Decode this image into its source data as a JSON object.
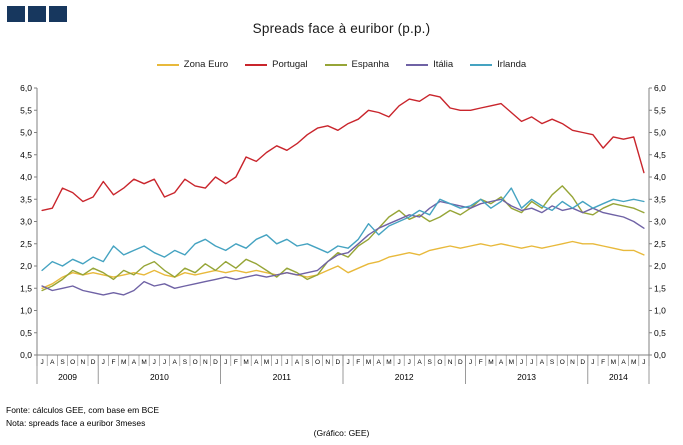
{
  "brand": {
    "square_color": "#17375E",
    "square_count": 3
  },
  "footer": {
    "source": "Fonte: cálculos GEE, com base em BCE",
    "note": "Nota: spreads face a euribor 3meses",
    "credit": "(Gráfico: GEE)"
  },
  "chart_data": {
    "type": "line",
    "title": "Spreads face à euribor (p.p.)",
    "ylim": [
      0,
      6
    ],
    "y_step": 0.5,
    "y_tick_labels": [
      "0,0",
      "0,5",
      "1,0",
      "1,5",
      "2,0",
      "2,5",
      "3,0",
      "3,5",
      "4,0",
      "4,5",
      "5,0",
      "5,5",
      "6,0"
    ],
    "grid": "off",
    "legend_position": "top-center",
    "axis_color": "#808080",
    "months": [
      "J",
      "A",
      "S",
      "O",
      "N",
      "D",
      "J",
      "F",
      "M",
      "A",
      "M",
      "J",
      "J",
      "A",
      "S",
      "O",
      "N",
      "D",
      "J",
      "F",
      "M",
      "A",
      "M",
      "J",
      "J",
      "A",
      "S",
      "O",
      "N",
      "D",
      "J",
      "F",
      "M",
      "A",
      "M",
      "J",
      "J",
      "A",
      "S",
      "O",
      "N",
      "D",
      "J",
      "F",
      "M",
      "A",
      "M",
      "J",
      "J",
      "A",
      "S",
      "O",
      "N",
      "D",
      "J",
      "F",
      "M",
      "A",
      "M",
      "J"
    ],
    "years": [
      {
        "label": "2009",
        "months": 6
      },
      {
        "label": "2010",
        "months": 12
      },
      {
        "label": "2011",
        "months": 12
      },
      {
        "label": "2012",
        "months": 12
      },
      {
        "label": "2013",
        "months": 12
      },
      {
        "label": "2014",
        "months": 6
      }
    ],
    "series": [
      {
        "name": "Zona Euro",
        "color": "#E8B93B",
        "values": [
          1.5,
          1.6,
          1.75,
          1.85,
          1.8,
          1.85,
          1.8,
          1.75,
          1.8,
          1.85,
          1.8,
          1.9,
          1.8,
          1.75,
          1.85,
          1.8,
          1.85,
          1.9,
          1.85,
          1.9,
          1.85,
          1.9,
          1.85,
          1.8,
          1.85,
          1.8,
          1.75,
          1.8,
          1.9,
          2.0,
          1.85,
          1.95,
          2.05,
          2.1,
          2.2,
          2.25,
          2.3,
          2.25,
          2.35,
          2.4,
          2.45,
          2.4,
          2.45,
          2.5,
          2.45,
          2.5,
          2.45,
          2.4,
          2.45,
          2.4,
          2.45,
          2.5,
          2.55,
          2.5,
          2.5,
          2.45,
          2.4,
          2.35,
          2.35,
          2.25
        ]
      },
      {
        "name": "Portugal",
        "color": "#C9252C",
        "values": [
          3.25,
          3.3,
          3.75,
          3.65,
          3.45,
          3.55,
          3.9,
          3.6,
          3.75,
          3.95,
          3.85,
          3.95,
          3.55,
          3.65,
          3.95,
          3.8,
          3.75,
          4.0,
          3.85,
          4.0,
          4.45,
          4.35,
          4.55,
          4.7,
          4.6,
          4.75,
          4.95,
          5.1,
          5.15,
          5.05,
          5.2,
          5.3,
          5.5,
          5.45,
          5.35,
          5.6,
          5.75,
          5.7,
          5.85,
          5.8,
          5.55,
          5.5,
          5.5,
          5.55,
          5.6,
          5.65,
          5.45,
          5.25,
          5.35,
          5.2,
          5.3,
          5.2,
          5.05,
          5.0,
          4.95,
          4.65,
          4.9,
          4.85,
          4.9,
          4.1
        ]
      },
      {
        "name": "Espanha",
        "color": "#96A537",
        "values": [
          1.45,
          1.55,
          1.7,
          1.9,
          1.8,
          1.95,
          1.85,
          1.7,
          1.9,
          1.8,
          2.0,
          2.1,
          1.9,
          1.75,
          1.95,
          1.85,
          2.05,
          1.9,
          2.1,
          1.95,
          2.15,
          2.05,
          1.9,
          1.75,
          1.95,
          1.85,
          1.7,
          1.8,
          2.1,
          2.3,
          2.2,
          2.45,
          2.6,
          2.85,
          3.1,
          3.25,
          3.05,
          3.15,
          3.0,
          3.1,
          3.25,
          3.15,
          3.3,
          3.5,
          3.4,
          3.55,
          3.3,
          3.2,
          3.45,
          3.3,
          3.6,
          3.8,
          3.55,
          3.2,
          3.15,
          3.3,
          3.4,
          3.35,
          3.3,
          3.2
        ]
      },
      {
        "name": "Itália",
        "color": "#6F62A5",
        "values": [
          1.55,
          1.45,
          1.5,
          1.55,
          1.45,
          1.4,
          1.35,
          1.4,
          1.35,
          1.45,
          1.65,
          1.55,
          1.6,
          1.5,
          1.55,
          1.6,
          1.65,
          1.7,
          1.75,
          1.7,
          1.75,
          1.8,
          1.75,
          1.8,
          1.85,
          1.8,
          1.85,
          1.9,
          2.1,
          2.25,
          2.3,
          2.5,
          2.7,
          2.85,
          2.95,
          3.05,
          3.15,
          3.1,
          3.3,
          3.45,
          3.4,
          3.35,
          3.3,
          3.4,
          3.45,
          3.5,
          3.35,
          3.25,
          3.3,
          3.2,
          3.35,
          3.25,
          3.3,
          3.2,
          3.3,
          3.2,
          3.15,
          3.1,
          3.0,
          2.85
        ]
      },
      {
        "name": "Irlanda",
        "color": "#45A3C1",
        "values": [
          1.9,
          2.1,
          2.0,
          2.15,
          2.05,
          2.2,
          2.1,
          2.45,
          2.25,
          2.35,
          2.45,
          2.3,
          2.2,
          2.35,
          2.25,
          2.5,
          2.6,
          2.45,
          2.35,
          2.5,
          2.4,
          2.6,
          2.7,
          2.5,
          2.6,
          2.45,
          2.5,
          2.4,
          2.3,
          2.45,
          2.4,
          2.6,
          2.95,
          2.7,
          2.9,
          3.0,
          3.1,
          3.25,
          3.15,
          3.5,
          3.4,
          3.3,
          3.35,
          3.5,
          3.3,
          3.45,
          3.75,
          3.3,
          3.5,
          3.35,
          3.25,
          3.45,
          3.3,
          3.45,
          3.3,
          3.4,
          3.5,
          3.45,
          3.5,
          3.45
        ]
      }
    ]
  }
}
